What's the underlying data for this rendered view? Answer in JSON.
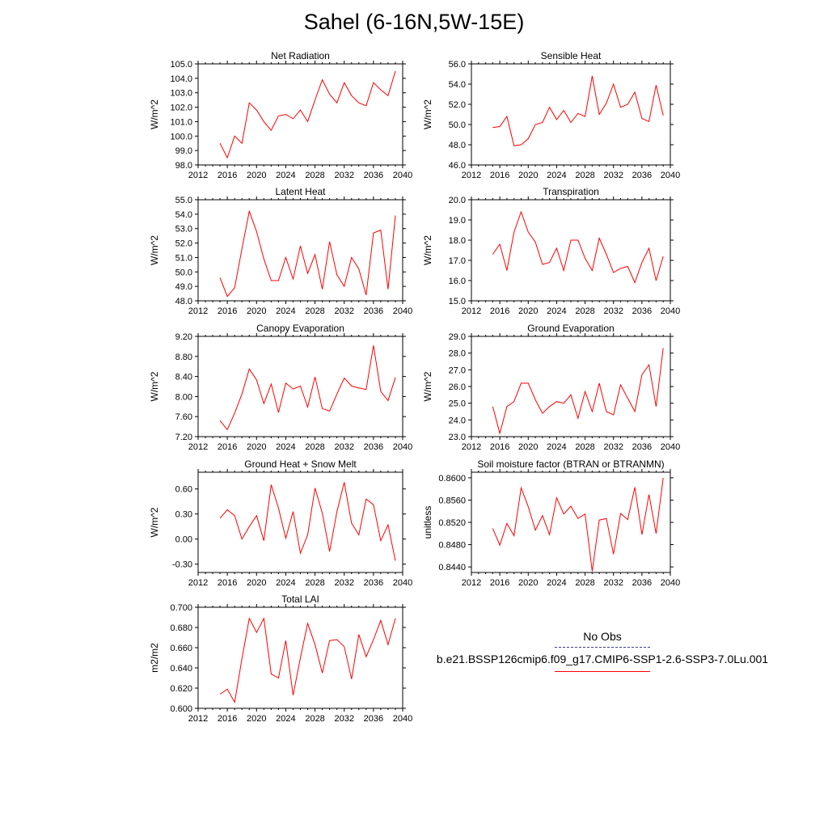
{
  "title": "Sahel (6-16N,5W-15E)",
  "legend": {
    "obs_label": "No Obs",
    "case_label": "b.e21.BSSP126cmip6.f09_g17.CMIP6-SSP1-2.6-SSP3-7.0Lu.001",
    "obs_color": "#3a3aa0",
    "case_color": "#ff0000"
  },
  "chart_data": [
    {
      "type": "line",
      "title": "Net Radiation",
      "ylabel": "W/m^2",
      "xlim": [
        2012,
        2040
      ],
      "ylim": [
        98.0,
        105.0
      ],
      "xticks": [
        "2012",
        "2016",
        "2020",
        "2024",
        "2028",
        "2032",
        "2036",
        "2040"
      ],
      "yticks": [
        "98.0",
        "99.0",
        "100.0",
        "101.0",
        "102.0",
        "103.0",
        "104.0",
        "105.0"
      ],
      "x": [
        2015,
        2016,
        2017,
        2018,
        2019,
        2020,
        2021,
        2022,
        2023,
        2024,
        2025,
        2026,
        2027,
        2028,
        2029,
        2030,
        2031,
        2032,
        2033,
        2034,
        2035,
        2036,
        2037,
        2038,
        2039
      ],
      "series": [
        {
          "values": [
            99.5,
            98.5,
            100.0,
            99.5,
            102.3,
            101.8,
            101.0,
            100.4,
            101.4,
            101.5,
            101.2,
            101.8,
            101.0,
            102.5,
            103.9,
            102.9,
            102.3,
            103.7,
            102.8,
            102.3,
            102.1,
            103.7,
            103.2,
            102.8,
            104.5
          ]
        }
      ]
    },
    {
      "type": "line",
      "title": "Sensible Heat",
      "ylabel": "W/m^2",
      "xlim": [
        2012,
        2040
      ],
      "ylim": [
        46.0,
        56.0
      ],
      "xticks": [
        "2012",
        "2016",
        "2020",
        "2024",
        "2028",
        "2032",
        "2036",
        "2040"
      ],
      "yticks": [
        "46.0",
        "48.0",
        "50.0",
        "52.0",
        "54.0",
        "56.0"
      ],
      "x": [
        2015,
        2016,
        2017,
        2018,
        2019,
        2020,
        2021,
        2022,
        2023,
        2024,
        2025,
        2026,
        2027,
        2028,
        2029,
        2030,
        2031,
        2032,
        2033,
        2034,
        2035,
        2036,
        2037,
        2038,
        2039
      ],
      "series": [
        {
          "values": [
            49.7,
            49.8,
            50.8,
            47.9,
            48.0,
            48.6,
            50.0,
            50.2,
            51.7,
            50.5,
            51.4,
            50.2,
            51.1,
            50.8,
            54.8,
            51.0,
            52.1,
            54.0,
            51.7,
            52.0,
            53.2,
            50.6,
            50.3,
            53.9,
            50.9
          ]
        }
      ]
    },
    {
      "type": "line",
      "title": "Latent Heat",
      "ylabel": "W/m^2",
      "xlim": [
        2012,
        2040
      ],
      "ylim": [
        48.0,
        55.0
      ],
      "xticks": [
        "2012",
        "2016",
        "2020",
        "2024",
        "2028",
        "2032",
        "2036",
        "2040"
      ],
      "yticks": [
        "48.0",
        "49.0",
        "50.0",
        "51.0",
        "52.0",
        "53.0",
        "54.0",
        "55.0"
      ],
      "x": [
        2015,
        2016,
        2017,
        2018,
        2019,
        2020,
        2021,
        2022,
        2023,
        2024,
        2025,
        2026,
        2027,
        2028,
        2029,
        2030,
        2031,
        2032,
        2033,
        2034,
        2035,
        2036,
        2037,
        2038,
        2039
      ],
      "series": [
        {
          "values": [
            49.6,
            48.3,
            48.9,
            51.6,
            54.2,
            52.8,
            50.9,
            49.4,
            49.4,
            51.0,
            49.5,
            51.8,
            49.9,
            51.2,
            48.8,
            52.1,
            49.8,
            49.0,
            51.0,
            50.2,
            48.4,
            52.7,
            52.9,
            48.8,
            53.9
          ]
        }
      ]
    },
    {
      "type": "line",
      "title": "Transpiration",
      "ylabel": "W/m^2",
      "xlim": [
        2012,
        2040
      ],
      "ylim": [
        15.0,
        20.0
      ],
      "xticks": [
        "2012",
        "2016",
        "2020",
        "2024",
        "2028",
        "2032",
        "2036",
        "2040"
      ],
      "yticks": [
        "15.0",
        "16.0",
        "17.0",
        "18.0",
        "19.0",
        "20.0"
      ],
      "x": [
        2015,
        2016,
        2017,
        2018,
        2019,
        2020,
        2021,
        2022,
        2023,
        2024,
        2025,
        2026,
        2027,
        2028,
        2029,
        2030,
        2031,
        2032,
        2033,
        2034,
        2035,
        2036,
        2037,
        2038,
        2039
      ],
      "series": [
        {
          "values": [
            17.3,
            17.8,
            16.5,
            18.4,
            19.4,
            18.4,
            17.9,
            16.8,
            16.9,
            17.6,
            16.5,
            18.0,
            18.0,
            17.1,
            16.5,
            18.1,
            17.3,
            16.4,
            16.6,
            16.7,
            15.9,
            16.9,
            17.6,
            16.0,
            17.2
          ]
        }
      ]
    },
    {
      "type": "line",
      "title": "Canopy Evaporation",
      "ylabel": "W/m^2",
      "xlim": [
        2012,
        2040
      ],
      "ylim": [
        7.2,
        9.2
      ],
      "xticks": [
        "2012",
        "2016",
        "2020",
        "2024",
        "2028",
        "2032",
        "2036",
        "2040"
      ],
      "yticks": [
        "7.20",
        "7.60",
        "8.00",
        "8.40",
        "8.80",
        "9.20"
      ],
      "x": [
        2015,
        2016,
        2017,
        2018,
        2019,
        2020,
        2021,
        2022,
        2023,
        2024,
        2025,
        2026,
        2027,
        2028,
        2029,
        2030,
        2031,
        2032,
        2033,
        2034,
        2035,
        2036,
        2037,
        2038,
        2039
      ],
      "series": [
        {
          "values": [
            7.52,
            7.34,
            7.67,
            8.05,
            8.55,
            8.33,
            7.86,
            8.25,
            7.68,
            8.27,
            8.15,
            8.21,
            7.79,
            8.39,
            7.76,
            7.71,
            8.05,
            8.37,
            8.21,
            8.17,
            8.14,
            9.02,
            8.1,
            7.92,
            8.38
          ]
        }
      ]
    },
    {
      "type": "line",
      "title": "Ground Evaporation",
      "ylabel": "W/m^2",
      "xlim": [
        2012,
        2040
      ],
      "ylim": [
        23.0,
        29.0
      ],
      "xticks": [
        "2012",
        "2016",
        "2020",
        "2024",
        "2028",
        "2032",
        "2036",
        "2040"
      ],
      "yticks": [
        "23.0",
        "24.0",
        "25.0",
        "26.0",
        "27.0",
        "28.0",
        "29.0"
      ],
      "x": [
        2015,
        2016,
        2017,
        2018,
        2019,
        2020,
        2021,
        2022,
        2023,
        2024,
        2025,
        2026,
        2027,
        2028,
        2029,
        2030,
        2031,
        2032,
        2033,
        2034,
        2035,
        2036,
        2037,
        2038,
        2039
      ],
      "series": [
        {
          "values": [
            24.8,
            23.2,
            24.8,
            25.1,
            26.2,
            26.2,
            25.2,
            24.4,
            24.8,
            25.1,
            25.0,
            25.5,
            24.1,
            25.7,
            24.5,
            26.2,
            24.5,
            24.3,
            26.1,
            25.3,
            24.5,
            26.7,
            27.3,
            24.8,
            28.3
          ]
        }
      ]
    },
    {
      "type": "line",
      "title": "Ground Heat + Snow Melt",
      "ylabel": "W/m^2",
      "xlim": [
        2012,
        2040
      ],
      "ylim": [
        -0.4,
        0.8
      ],
      "xticks": [
        "2012",
        "2016",
        "2020",
        "2024",
        "2028",
        "2032",
        "2036",
        "2040"
      ],
      "yticks": [
        "-0.30",
        "0.00",
        "0.30",
        "0.60"
      ],
      "ytick_values": [
        -0.3,
        0.0,
        0.3,
        0.6
      ],
      "x": [
        2015,
        2016,
        2017,
        2018,
        2019,
        2020,
        2021,
        2022,
        2023,
        2024,
        2025,
        2026,
        2027,
        2028,
        2029,
        2030,
        2031,
        2032,
        2033,
        2034,
        2035,
        2036,
        2037,
        2038,
        2039
      ],
      "series": [
        {
          "values": [
            0.25,
            0.35,
            0.28,
            0.0,
            0.15,
            0.28,
            -0.02,
            0.65,
            0.37,
            0.01,
            0.33,
            -0.17,
            0.05,
            0.61,
            0.31,
            -0.15,
            0.33,
            0.68,
            0.19,
            0.05,
            0.48,
            0.41,
            -0.02,
            0.17,
            -0.26
          ]
        }
      ]
    },
    {
      "type": "line",
      "title": "Soil moisture factor (BTRAN or BTRANMN)",
      "ylabel": "unitless",
      "xlim": [
        2012,
        2040
      ],
      "ylim": [
        0.843,
        0.861
      ],
      "xticks": [
        "2012",
        "2016",
        "2020",
        "2024",
        "2028",
        "2032",
        "2036",
        "2040"
      ],
      "yticks": [
        "0.8440",
        "0.8480",
        "0.8520",
        "0.8560",
        "0.8600"
      ],
      "ytick_values": [
        0.844,
        0.848,
        0.852,
        0.856,
        0.86
      ],
      "x": [
        2015,
        2016,
        2017,
        2018,
        2019,
        2020,
        2021,
        2022,
        2023,
        2024,
        2025,
        2026,
        2027,
        2028,
        2029,
        2030,
        2031,
        2032,
        2033,
        2034,
        2035,
        2036,
        2037,
        2038,
        2039
      ],
      "series": [
        {
          "values": [
            0.8509,
            0.8479,
            0.8518,
            0.8496,
            0.8582,
            0.8548,
            0.8506,
            0.8532,
            0.8498,
            0.8564,
            0.8535,
            0.8549,
            0.8527,
            0.8535,
            0.8432,
            0.8524,
            0.8527,
            0.8463,
            0.8536,
            0.8525,
            0.8583,
            0.8498,
            0.857,
            0.85,
            0.86
          ]
        }
      ]
    },
    {
      "type": "line",
      "title": "Total LAI",
      "ylabel": "m2/m2",
      "xlim": [
        2012,
        2040
      ],
      "ylim": [
        0.6,
        0.7
      ],
      "xticks": [
        "2012",
        "2016",
        "2020",
        "2024",
        "2028",
        "2032",
        "2036",
        "2040"
      ],
      "yticks": [
        "0.600",
        "0.620",
        "0.640",
        "0.660",
        "0.680",
        "0.700"
      ],
      "x": [
        2015,
        2016,
        2017,
        2018,
        2019,
        2020,
        2021,
        2022,
        2023,
        2024,
        2025,
        2026,
        2027,
        2028,
        2029,
        2030,
        2031,
        2032,
        2033,
        2034,
        2035,
        2036,
        2037,
        2038,
        2039
      ],
      "series": [
        {
          "values": [
            0.614,
            0.619,
            0.606,
            0.649,
            0.689,
            0.675,
            0.689,
            0.634,
            0.63,
            0.667,
            0.613,
            0.65,
            0.684,
            0.663,
            0.635,
            0.667,
            0.668,
            0.661,
            0.629,
            0.673,
            0.651,
            0.668,
            0.687,
            0.663,
            0.689
          ]
        }
      ]
    }
  ]
}
